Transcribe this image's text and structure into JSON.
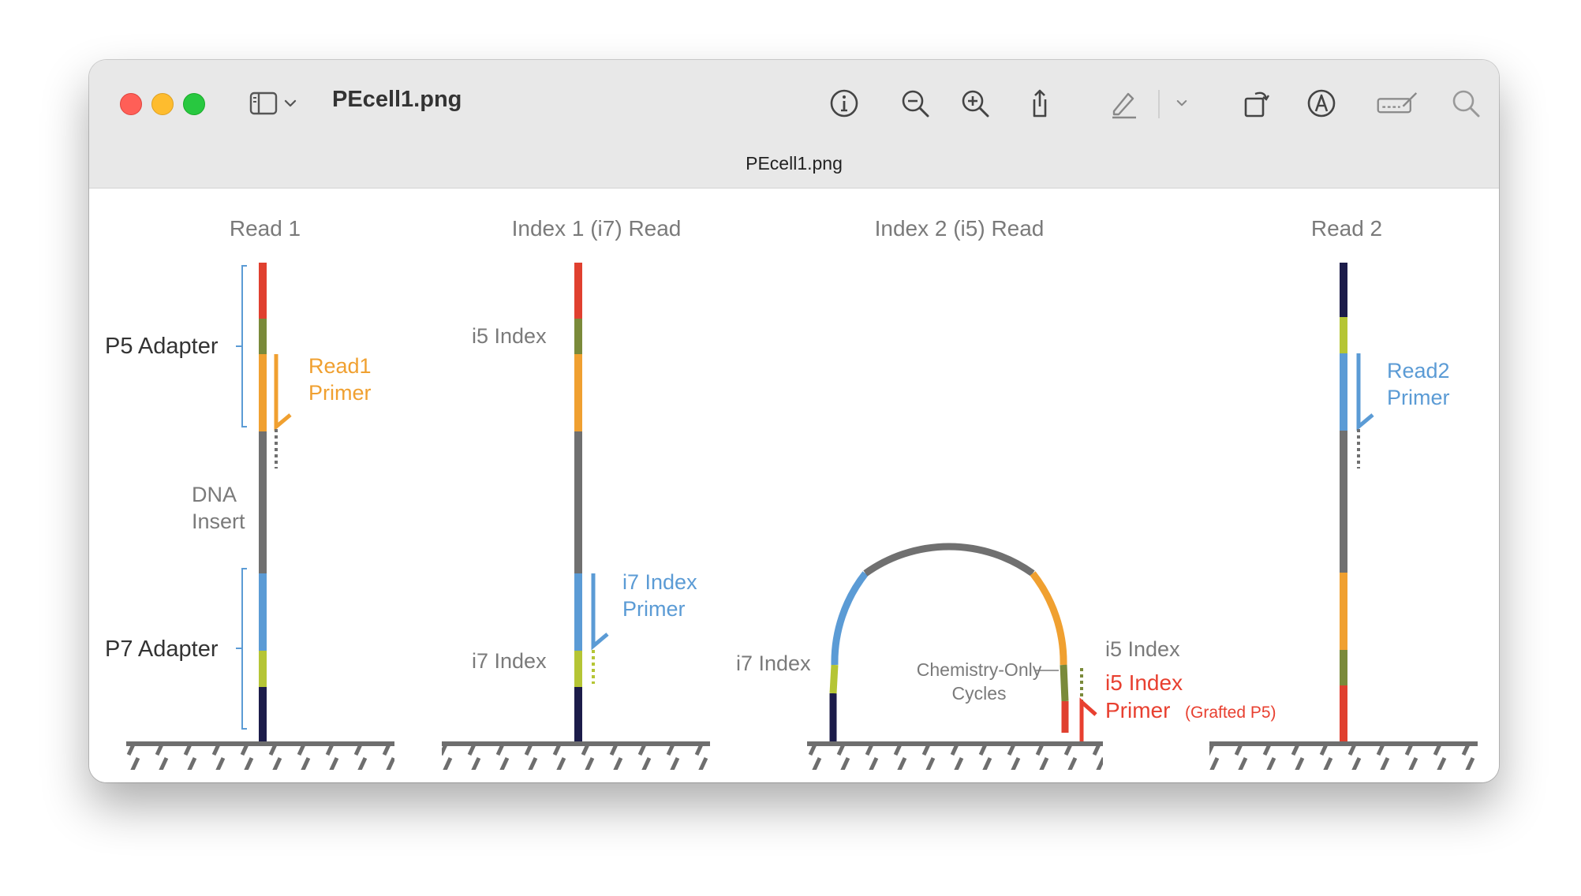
{
  "window": {
    "title": "PEcell1.png",
    "subtitle": "PEcell1.png"
  },
  "toolbar": {
    "icons": [
      "sidebar-icon",
      "chevron-down-icon",
      "info-icon",
      "zoom-out-icon",
      "zoom-in-icon",
      "share-icon",
      "markup-pen-icon",
      "chevron-down-icon",
      "rotate-icon",
      "annotate-icon",
      "signature-icon",
      "search-icon"
    ]
  },
  "diagram": {
    "headings": {
      "read1": "Read 1",
      "index1": "Index 1 (i7) Read",
      "index2": "Index 2 (i5) Read",
      "read2": "Read 2"
    },
    "labels": {
      "p5_adapter": "P5 Adapter",
      "p7_adapter": "P7 Adapter",
      "read1_primer_line1": "Read1",
      "read1_primer_line2": "Primer",
      "dna_line1": "DNA",
      "dna_line2": "Insert",
      "i5_index_p2": "i5 Index",
      "i7_index_p2": "i7 Index",
      "i7_primer_line1": "i7 Index",
      "i7_primer_line2": "Primer",
      "i7_index_p3": "i7 Index",
      "chem_line1": "Chemistry-Only",
      "chem_line2": "Cycles",
      "i5_index_p3": "i5 Index",
      "i5_primer_line1": "i5 Index",
      "i5_primer_line2": "Primer",
      "grafted": "(Grafted P5)",
      "read2_primer_line1": "Read2",
      "read2_primer_line2": "Primer"
    },
    "colors": {
      "red": "#e0402f",
      "olive": "#7a8a3a",
      "orange": "#f0a030",
      "gray": "#707070",
      "blue": "#5b9bd5",
      "lime": "#b5c535",
      "navy": "#1c1c4a",
      "label_gray": "#7a7a7a",
      "orange_text": "#f0a030",
      "blue_text": "#5b9bd5",
      "red_text": "#e84030"
    }
  }
}
